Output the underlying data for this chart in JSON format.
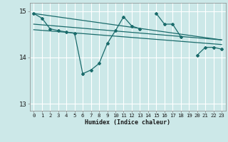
{
  "xlabel": "Humidex (Indice chaleur)",
  "bg_color": "#cce8e8",
  "grid_color": "#ffffff",
  "line_color": "#1a6b6b",
  "x": [
    0,
    1,
    2,
    3,
    4,
    5,
    6,
    7,
    8,
    9,
    10,
    11,
    12,
    13,
    14,
    15,
    16,
    17,
    18,
    19,
    20,
    21,
    22,
    23
  ],
  "y_main": [
    14.95,
    14.85,
    14.62,
    14.58,
    14.55,
    14.52,
    13.65,
    13.73,
    13.87,
    14.3,
    14.58,
    14.88,
    14.68,
    14.62,
    null,
    14.95,
    14.72,
    14.72,
    14.45,
    null,
    14.05,
    14.22,
    14.22,
    14.18
  ],
  "trend1_x": [
    0,
    23
  ],
  "trend1_y": [
    14.95,
    14.38
  ],
  "trend2_x": [
    0,
    23
  ],
  "trend2_y": [
    14.72,
    14.38
  ],
  "trend3_x": [
    0,
    23
  ],
  "trend3_y": [
    14.6,
    14.28
  ],
  "ylim": [
    12.85,
    15.18
  ],
  "yticks": [
    13,
    14,
    15
  ],
  "xticks": [
    0,
    1,
    2,
    3,
    4,
    5,
    6,
    7,
    8,
    9,
    10,
    11,
    12,
    13,
    14,
    15,
    16,
    17,
    18,
    19,
    20,
    21,
    22,
    23
  ]
}
